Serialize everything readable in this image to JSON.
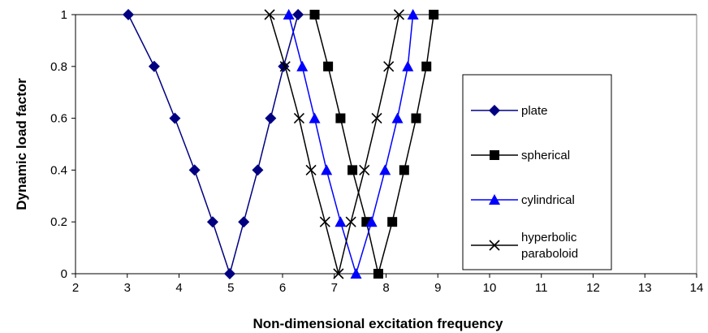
{
  "chart_data": {
    "type": "line",
    "title": "",
    "xlabel": "Non-dimensional excitation frequency",
    "ylabel": "Dynamic load factor",
    "xlim": [
      2,
      14
    ],
    "ylim": [
      0,
      1
    ],
    "x_ticks": [
      "2",
      "3",
      "4",
      "5",
      "6",
      "7",
      "8",
      "9",
      "10",
      "11",
      "12",
      "13",
      "14"
    ],
    "y_ticks": [
      "0",
      "0.2",
      "0.4",
      "0.6",
      "0.8",
      "1"
    ],
    "grid": "horizontal top gridline only",
    "legend_position": "right",
    "series": [
      {
        "name": "plate",
        "color": "#000080",
        "marker": "diamond",
        "points": [
          [
            3.02,
            1.0
          ],
          [
            3.52,
            0.8
          ],
          [
            3.92,
            0.6
          ],
          [
            4.3,
            0.4
          ],
          [
            4.65,
            0.2
          ],
          [
            4.98,
            0.0
          ],
          [
            5.25,
            0.2
          ],
          [
            5.52,
            0.4
          ],
          [
            5.77,
            0.6
          ],
          [
            6.02,
            0.8
          ],
          [
            6.3,
            1.0
          ]
        ]
      },
      {
        "name": "spherical",
        "color": "#000000",
        "marker": "square",
        "points": [
          [
            6.62,
            1.0
          ],
          [
            6.88,
            0.8
          ],
          [
            7.12,
            0.6
          ],
          [
            7.35,
            0.4
          ],
          [
            7.62,
            0.2
          ],
          [
            7.85,
            0.0
          ],
          [
            8.12,
            0.2
          ],
          [
            8.35,
            0.4
          ],
          [
            8.58,
            0.6
          ],
          [
            8.78,
            0.8
          ],
          [
            8.92,
            1.0
          ]
        ]
      },
      {
        "name": "cylindrical",
        "color": "#0000ff",
        "marker": "triangle",
        "points": [
          [
            6.12,
            1.0
          ],
          [
            6.38,
            0.8
          ],
          [
            6.62,
            0.6
          ],
          [
            6.85,
            0.4
          ],
          [
            7.12,
            0.2
          ],
          [
            7.42,
            0.0
          ],
          [
            7.72,
            0.2
          ],
          [
            7.98,
            0.4
          ],
          [
            8.22,
            0.6
          ],
          [
            8.42,
            0.8
          ],
          [
            8.52,
            1.0
          ]
        ]
      },
      {
        "name": "hyperbolic paraboloid",
        "name_lines": [
          "hyperbolic",
          "paraboloid"
        ],
        "color": "#000000",
        "marker": "x",
        "points": [
          [
            5.75,
            1.0
          ],
          [
            6.05,
            0.8
          ],
          [
            6.32,
            0.6
          ],
          [
            6.55,
            0.4
          ],
          [
            6.82,
            0.2
          ],
          [
            7.08,
            0.0
          ],
          [
            7.32,
            0.2
          ],
          [
            7.58,
            0.4
          ],
          [
            7.82,
            0.6
          ],
          [
            8.05,
            0.8
          ],
          [
            8.25,
            1.0
          ]
        ]
      }
    ]
  }
}
